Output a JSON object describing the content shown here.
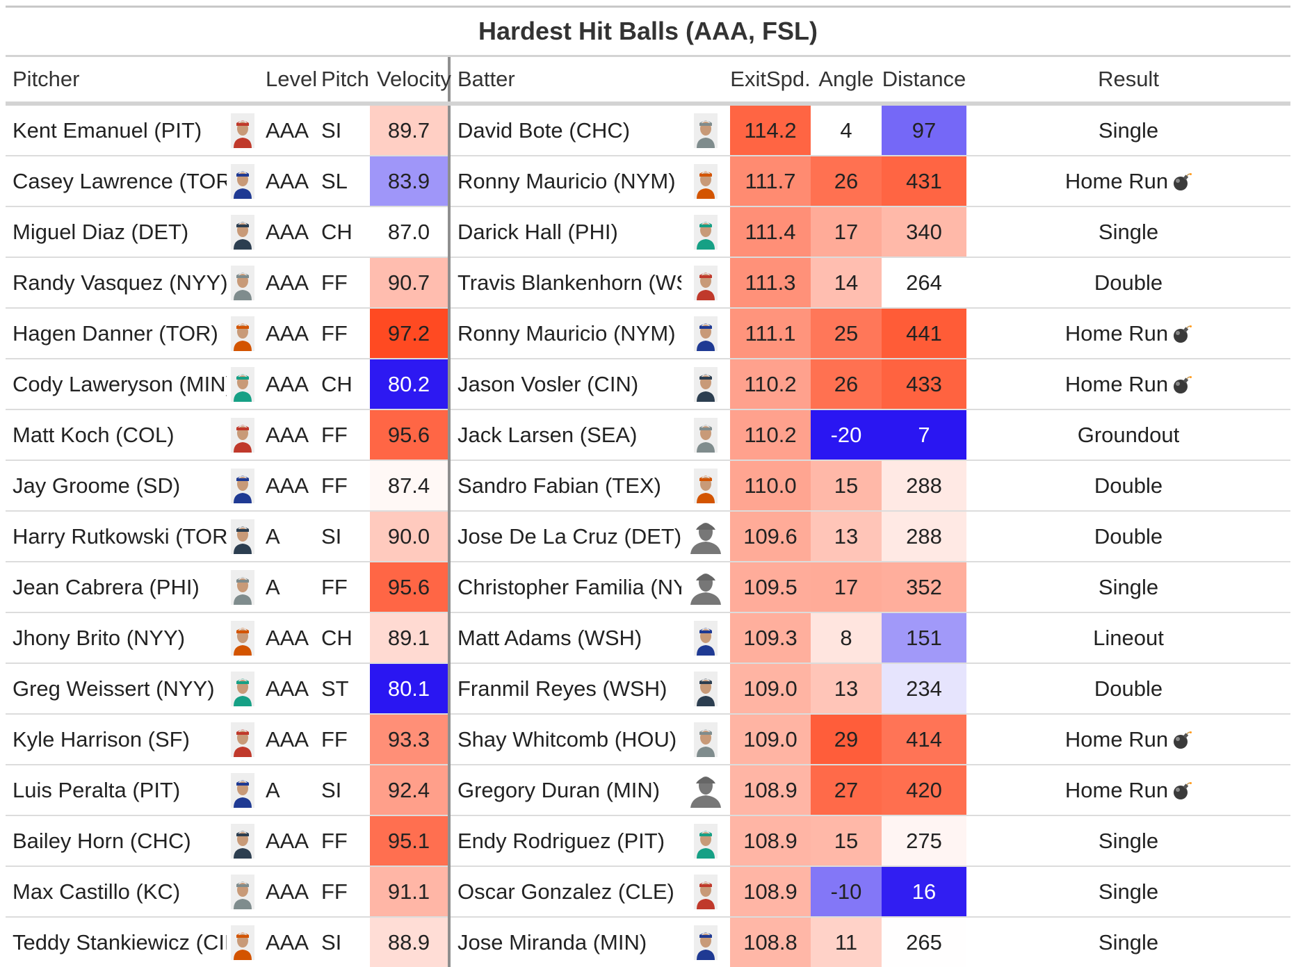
{
  "chart_data": {
    "type": "table",
    "title": "Hardest Hit Balls (AAA, FSL)",
    "columns": [
      "Pitcher",
      "Level",
      "Pitch",
      "Velocity",
      "Batter",
      "ExitSpd.",
      "Angle",
      "Distance",
      "Result"
    ],
    "rows": [
      {
        "pitcher": "Kent Emanuel (PIT)",
        "level": "AAA",
        "pitch": "SI",
        "velocity": "89.7",
        "batter": "David Bote (CHC)",
        "exitspd": "114.2",
        "angle": "4",
        "distance": "97",
        "result": "Single",
        "hr": false
      },
      {
        "pitcher": "Casey Lawrence (TOR)",
        "level": "AAA",
        "pitch": "SL",
        "velocity": "83.9",
        "batter": "Ronny Mauricio (NYM)",
        "exitspd": "111.7",
        "angle": "26",
        "distance": "431",
        "result": "Home Run",
        "hr": true
      },
      {
        "pitcher": "Miguel Diaz (DET)",
        "level": "AAA",
        "pitch": "CH",
        "velocity": "87.0",
        "batter": "Darick Hall (PHI)",
        "exitspd": "111.4",
        "angle": "17",
        "distance": "340",
        "result": "Single",
        "hr": false
      },
      {
        "pitcher": "Randy Vasquez (NYY)",
        "level": "AAA",
        "pitch": "FF",
        "velocity": "90.7",
        "batter": "Travis Blankenhorn (WSH)",
        "exitspd": "111.3",
        "angle": "14",
        "distance": "264",
        "result": "Double",
        "hr": false
      },
      {
        "pitcher": "Hagen Danner (TOR)",
        "level": "AAA",
        "pitch": "FF",
        "velocity": "97.2",
        "batter": "Ronny Mauricio (NYM)",
        "exitspd": "111.1",
        "angle": "25",
        "distance": "441",
        "result": "Home Run",
        "hr": true
      },
      {
        "pitcher": "Cody Laweryson (MIN)",
        "level": "AAA",
        "pitch": "CH",
        "velocity": "80.2",
        "batter": "Jason Vosler (CIN)",
        "exitspd": "110.2",
        "angle": "26",
        "distance": "433",
        "result": "Home Run",
        "hr": true
      },
      {
        "pitcher": "Matt Koch (COL)",
        "level": "AAA",
        "pitch": "FF",
        "velocity": "95.6",
        "batter": "Jack Larsen (SEA)",
        "exitspd": "110.2",
        "angle": "-20",
        "distance": "7",
        "result": "Groundout",
        "hr": false
      },
      {
        "pitcher": "Jay Groome (SD)",
        "level": "AAA",
        "pitch": "FF",
        "velocity": "87.4",
        "batter": "Sandro Fabian (TEX)",
        "exitspd": "110.0",
        "angle": "15",
        "distance": "288",
        "result": "Double",
        "hr": false
      },
      {
        "pitcher": "Harry Rutkowski (TOR)",
        "level": "A",
        "pitch": "SI",
        "velocity": "90.0",
        "batter": "Jose De La Cruz (DET)",
        "exitspd": "109.6",
        "angle": "13",
        "distance": "288",
        "result": "Double",
        "hr": false
      },
      {
        "pitcher": "Jean Cabrera (PHI)",
        "level": "A",
        "pitch": "FF",
        "velocity": "95.6",
        "batter": "Christopher Familia (NYY)",
        "exitspd": "109.5",
        "angle": "17",
        "distance": "352",
        "result": "Single",
        "hr": false
      },
      {
        "pitcher": "Jhony Brito (NYY)",
        "level": "AAA",
        "pitch": "CH",
        "velocity": "89.1",
        "batter": "Matt Adams (WSH)",
        "exitspd": "109.3",
        "angle": "8",
        "distance": "151",
        "result": "Lineout",
        "hr": false
      },
      {
        "pitcher": "Greg Weissert (NYY)",
        "level": "AAA",
        "pitch": "ST",
        "velocity": "80.1",
        "batter": "Franmil Reyes (WSH)",
        "exitspd": "109.0",
        "angle": "13",
        "distance": "234",
        "result": "Double",
        "hr": false
      },
      {
        "pitcher": "Kyle Harrison (SF)",
        "level": "AAA",
        "pitch": "FF",
        "velocity": "93.3",
        "batter": "Shay Whitcomb (HOU)",
        "exitspd": "109.0",
        "angle": "29",
        "distance": "414",
        "result": "Home Run",
        "hr": true
      },
      {
        "pitcher": "Luis Peralta (PIT)",
        "level": "A",
        "pitch": "SI",
        "velocity": "92.4",
        "batter": "Gregory Duran (MIN)",
        "exitspd": "108.9",
        "angle": "27",
        "distance": "420",
        "result": "Home Run",
        "hr": true
      },
      {
        "pitcher": "Bailey Horn (CHC)",
        "level": "AAA",
        "pitch": "FF",
        "velocity": "95.1",
        "batter": "Endy Rodriguez (PIT)",
        "exitspd": "108.9",
        "angle": "15",
        "distance": "275",
        "result": "Single",
        "hr": false
      },
      {
        "pitcher": "Max Castillo (KC)",
        "level": "AAA",
        "pitch": "FF",
        "velocity": "91.1",
        "batter": "Oscar Gonzalez (CLE)",
        "exitspd": "108.9",
        "angle": "-10",
        "distance": "16",
        "result": "Single",
        "hr": false
      },
      {
        "pitcher": "Teddy Stankiewicz (CIN)",
        "level": "AAA",
        "pitch": "SI",
        "velocity": "88.9",
        "batter": "Jose Miranda (MIN)",
        "exitspd": "108.8",
        "angle": "11",
        "distance": "265",
        "result": "Single",
        "hr": false
      }
    ],
    "color_scales": {
      "velocity": {
        "min": 80.1,
        "mid": 87.0,
        "max": 97.2
      },
      "exitspd": {
        "min": 100,
        "mid": 104,
        "max": 116
      },
      "angle": {
        "min": -20,
        "mid": 4,
        "max": 32
      },
      "distance": {
        "min": 7,
        "mid": 264,
        "max": 460
      }
    },
    "colors": {
      "high": "#ff4a22",
      "mid": "#ffffff",
      "low": "#2a16f2"
    }
  }
}
